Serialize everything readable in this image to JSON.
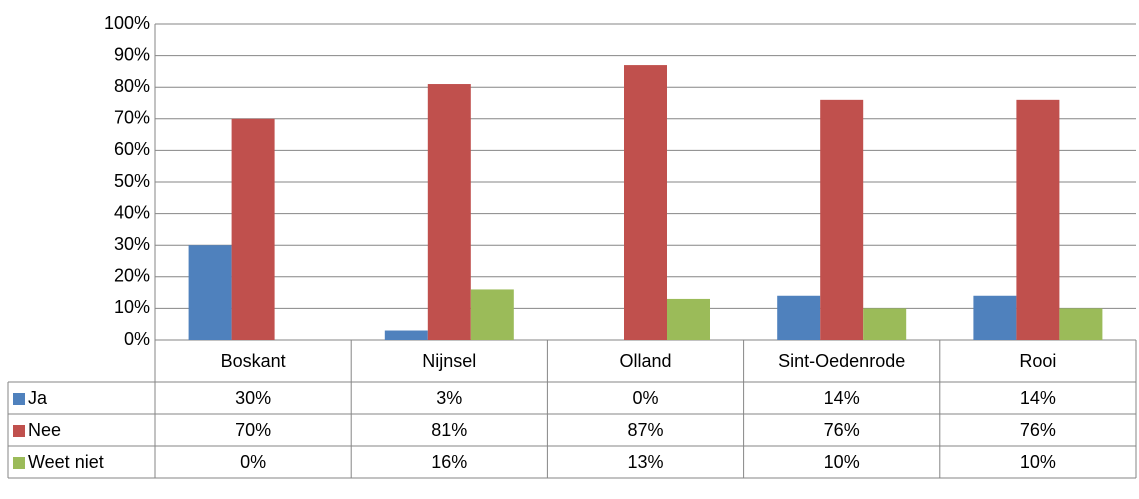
{
  "chart_data": {
    "type": "bar",
    "categories": [
      "Boskant",
      "Nijnsel",
      "Olland",
      "Sint-Oedenrode",
      "Rooi"
    ],
    "series": [
      {
        "name": "Ja",
        "color": "#4f81bd",
        "values": [
          30,
          3,
          0,
          14,
          14
        ],
        "value_labels": [
          "30%",
          "3%",
          "0%",
          "14%",
          "14%"
        ]
      },
      {
        "name": "Nee",
        "color": "#c0504d",
        "values": [
          70,
          81,
          87,
          76,
          76
        ],
        "value_labels": [
          "70%",
          "81%",
          "87%",
          "76%",
          "76%"
        ]
      },
      {
        "name": "Weet niet",
        "color": "#9bbb59",
        "values": [
          0,
          16,
          13,
          10,
          10
        ],
        "value_labels": [
          "0%",
          "16%",
          "13%",
          "10%",
          "10%"
        ]
      }
    ],
    "ylim": [
      0,
      100
    ],
    "yticks": [
      {
        "value": 0,
        "label": "0%"
      },
      {
        "value": 10,
        "label": "10%"
      },
      {
        "value": 20,
        "label": "20%"
      },
      {
        "value": 30,
        "label": "30%"
      },
      {
        "value": 40,
        "label": "40%"
      },
      {
        "value": 50,
        "label": "50%"
      },
      {
        "value": 60,
        "label": "60%"
      },
      {
        "value": 70,
        "label": "70%"
      },
      {
        "value": 80,
        "label": "80%"
      },
      {
        "value": 90,
        "label": "90%"
      },
      {
        "value": 100,
        "label": "100%"
      }
    ],
    "grid": true
  }
}
